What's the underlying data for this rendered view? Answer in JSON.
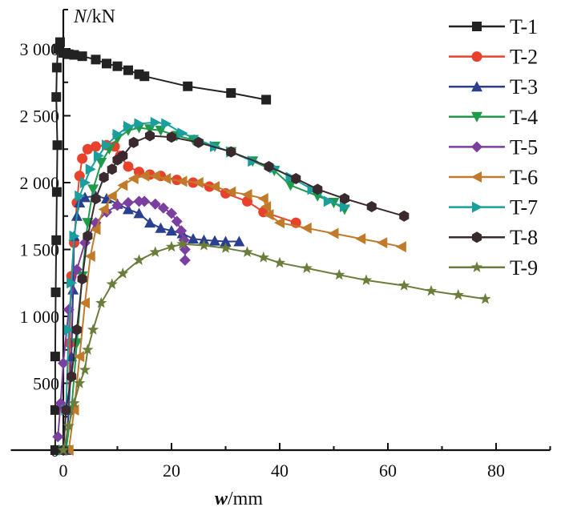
{
  "chart_data": {
    "type": "line",
    "title": "",
    "xlabel_italic": "w",
    "xlabel_unit": "/mm",
    "ylabel_italic": "N",
    "ylabel_unit": "/kN",
    "xlim": [
      -10,
      90
    ],
    "ylim": [
      0,
      3200
    ],
    "xticks": [
      0,
      20,
      40,
      60,
      80
    ],
    "xtick_labels": [
      "0",
      "20",
      "40",
      "60",
      "80"
    ],
    "xminor": [
      10,
      30,
      50,
      70,
      90
    ],
    "yticks": [
      0,
      500,
      1000,
      1500,
      2000,
      2500,
      3000
    ],
    "ytick_labels": [
      "0",
      "500",
      "1 000",
      "1 500",
      "2 000",
      "2 500",
      "3 000"
    ],
    "yminor": [
      250,
      750,
      1250,
      1750,
      2250,
      2750
    ],
    "grid": false,
    "legend_position": "top-right",
    "series": [
      {
        "name": "T-1",
        "color": "#222222",
        "marker": "square",
        "points": [
          [
            -1.5,
            0
          ],
          [
            -1.5,
            300
          ],
          [
            -1.5,
            700
          ],
          [
            -1.4,
            1180
          ],
          [
            -1.3,
            1570
          ],
          [
            -1.2,
            1930
          ],
          [
            -1.1,
            2280
          ],
          [
            -1.3,
            2640
          ],
          [
            -1.2,
            2860
          ],
          [
            -1,
            3000
          ],
          [
            -0.6,
            3050
          ],
          [
            0,
            2970
          ],
          [
            1,
            2960
          ],
          [
            2,
            2955
          ],
          [
            3.5,
            2945
          ],
          [
            6,
            2920
          ],
          [
            8,
            2890
          ],
          [
            10,
            2870
          ],
          [
            12,
            2840
          ],
          [
            14,
            2810
          ],
          [
            15,
            2795
          ],
          [
            23,
            2720
          ],
          [
            31,
            2670
          ],
          [
            37.5,
            2620
          ]
        ]
      },
      {
        "name": "T-2",
        "color": "#e8412c",
        "marker": "circle",
        "points": [
          [
            0.5,
            0
          ],
          [
            1,
            300
          ],
          [
            1.2,
            800
          ],
          [
            1.5,
            1300
          ],
          [
            2,
            1550
          ],
          [
            2.5,
            1850
          ],
          [
            3,
            2050
          ],
          [
            3.5,
            2180
          ],
          [
            4.5,
            2250
          ],
          [
            6,
            2270
          ],
          [
            8,
            2280
          ],
          [
            9.5,
            2270
          ],
          [
            10.5,
            2200
          ],
          [
            12,
            2120
          ],
          [
            14,
            2080
          ],
          [
            16,
            2060
          ],
          [
            18,
            2050
          ],
          [
            21,
            2020
          ],
          [
            24,
            2000
          ],
          [
            27,
            1970
          ],
          [
            30,
            1920
          ],
          [
            34,
            1860
          ],
          [
            37,
            1780
          ],
          [
            43,
            1700
          ]
        ]
      },
      {
        "name": "T-3",
        "color": "#2a3f8f",
        "marker": "triangle-up",
        "points": [
          [
            0.5,
            0
          ],
          [
            1,
            300
          ],
          [
            1.5,
            700
          ],
          [
            1.8,
            1200
          ],
          [
            2,
            1600
          ],
          [
            2.5,
            1750
          ],
          [
            3,
            1850
          ],
          [
            4,
            1890
          ],
          [
            6,
            1900
          ],
          [
            8,
            1880
          ],
          [
            10,
            1840
          ],
          [
            12,
            1800
          ],
          [
            14,
            1770
          ],
          [
            16,
            1700
          ],
          [
            18,
            1660
          ],
          [
            20,
            1640
          ],
          [
            22,
            1620
          ],
          [
            24,
            1580
          ],
          [
            26,
            1570
          ],
          [
            28,
            1565
          ],
          [
            30,
            1560
          ],
          [
            32.5,
            1560
          ]
        ]
      },
      {
        "name": "T-4",
        "color": "#1e9a4a",
        "marker": "triangle-down",
        "points": [
          [
            0.5,
            0
          ],
          [
            1.5,
            300
          ],
          [
            2.5,
            800
          ],
          [
            3.5,
            1300
          ],
          [
            4.5,
            1700
          ],
          [
            5.5,
            1950
          ],
          [
            7,
            2150
          ],
          [
            8.5,
            2250
          ],
          [
            10,
            2330
          ],
          [
            12,
            2390
          ],
          [
            14,
            2410
          ],
          [
            16,
            2400
          ],
          [
            18,
            2390
          ],
          [
            21,
            2350
          ],
          [
            24,
            2320
          ],
          [
            28,
            2270
          ],
          [
            31,
            2230
          ],
          [
            35,
            2160
          ],
          [
            39,
            2090
          ],
          [
            42,
            1980
          ],
          [
            47,
            1900
          ],
          [
            50,
            1850
          ],
          [
            52,
            1800
          ]
        ]
      },
      {
        "name": "T-5",
        "color": "#7b3fa0",
        "marker": "diamond",
        "points": [
          [
            -1,
            100
          ],
          [
            -0.5,
            350
          ],
          [
            0,
            650
          ],
          [
            1,
            1050
          ],
          [
            2.5,
            1350
          ],
          [
            4,
            1550
          ],
          [
            6,
            1700
          ],
          [
            8,
            1780
          ],
          [
            10,
            1830
          ],
          [
            12,
            1850
          ],
          [
            14,
            1860
          ],
          [
            15,
            1860
          ],
          [
            17,
            1840
          ],
          [
            18.5,
            1810
          ],
          [
            20,
            1770
          ],
          [
            21,
            1710
          ],
          [
            21.8,
            1640
          ],
          [
            22.3,
            1570
          ],
          [
            22.5,
            1500
          ],
          [
            22.5,
            1420
          ]
        ]
      },
      {
        "name": "T-6",
        "color": "#c07a2a",
        "marker": "triangle-left",
        "points": [
          [
            1,
            0
          ],
          [
            2,
            300
          ],
          [
            3,
            700
          ],
          [
            4,
            1100
          ],
          [
            5,
            1450
          ],
          [
            6,
            1650
          ],
          [
            7.5,
            1800
          ],
          [
            9,
            1900
          ],
          [
            11,
            1980
          ],
          [
            13,
            2030
          ],
          [
            15,
            2050
          ],
          [
            17,
            2050
          ],
          [
            19,
            2030
          ],
          [
            22,
            2010
          ],
          [
            25,
            2000
          ],
          [
            28,
            1970
          ],
          [
            31,
            1930
          ],
          [
            34,
            1910
          ],
          [
            37,
            1880
          ],
          [
            37.5,
            1820
          ],
          [
            38,
            1760
          ],
          [
            40,
            1700
          ],
          [
            45,
            1660
          ],
          [
            50,
            1620
          ],
          [
            55,
            1580
          ],
          [
            59,
            1550
          ],
          [
            62.5,
            1520
          ]
        ]
      },
      {
        "name": "T-7",
        "color": "#1a9e9e",
        "marker": "triangle-right",
        "points": [
          [
            0,
            0
          ],
          [
            0.5,
            300
          ],
          [
            1,
            900
          ],
          [
            1.5,
            1250
          ],
          [
            2,
            1600
          ],
          [
            3,
            1900
          ],
          [
            4,
            2000
          ],
          [
            5,
            2100
          ],
          [
            6.5,
            2200
          ],
          [
            8,
            2280
          ],
          [
            10,
            2360
          ],
          [
            12,
            2420
          ],
          [
            14,
            2440
          ],
          [
            17,
            2450
          ],
          [
            19,
            2440
          ],
          [
            22,
            2370
          ],
          [
            25,
            2320
          ],
          [
            28,
            2270
          ],
          [
            31,
            2230
          ],
          [
            35,
            2160
          ],
          [
            39,
            2110
          ],
          [
            42,
            2040
          ],
          [
            46,
            1950
          ],
          [
            49,
            1860
          ],
          [
            52,
            1820
          ]
        ]
      },
      {
        "name": "T-8",
        "color": "#3a2a2e",
        "marker": "hexagon",
        "points": [
          [
            0,
            0
          ],
          [
            0.5,
            300
          ],
          [
            1.5,
            550
          ],
          [
            2.5,
            900
          ],
          [
            3.5,
            1280
          ],
          [
            4.5,
            1600
          ],
          [
            6,
            1880
          ],
          [
            7.5,
            2040
          ],
          [
            9,
            2100
          ],
          [
            10,
            2170
          ],
          [
            11,
            2200
          ],
          [
            13,
            2300
          ],
          [
            16,
            2350
          ],
          [
            20,
            2340
          ],
          [
            25,
            2300
          ],
          [
            31,
            2230
          ],
          [
            38,
            2120
          ],
          [
            43,
            2030
          ],
          [
            47,
            1950
          ],
          [
            52,
            1880
          ],
          [
            57,
            1820
          ],
          [
            63,
            1750
          ]
        ]
      },
      {
        "name": "T-9",
        "color": "#6b7d3a",
        "marker": "star",
        "points": [
          [
            0,
            0
          ],
          [
            1,
            180
          ],
          [
            2,
            350
          ],
          [
            3,
            500
          ],
          [
            4,
            600
          ],
          [
            4.5,
            750
          ],
          [
            5.5,
            900
          ],
          [
            7,
            1100
          ],
          [
            9,
            1240
          ],
          [
            11,
            1320
          ],
          [
            14,
            1420
          ],
          [
            17,
            1480
          ],
          [
            20,
            1520
          ],
          [
            22,
            1540
          ],
          [
            26,
            1530
          ],
          [
            30,
            1510
          ],
          [
            34,
            1480
          ],
          [
            37,
            1440
          ],
          [
            40,
            1400
          ],
          [
            45,
            1360
          ],
          [
            51,
            1310
          ],
          [
            56,
            1270
          ],
          [
            63,
            1230
          ],
          [
            68,
            1190
          ],
          [
            73,
            1160
          ],
          [
            78,
            1130
          ]
        ]
      }
    ]
  }
}
